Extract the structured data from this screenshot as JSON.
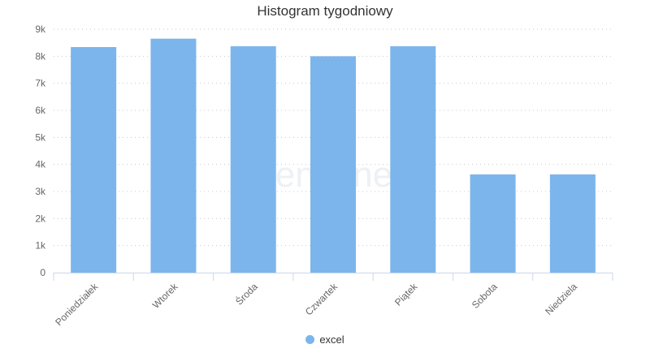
{
  "chart_data": {
    "type": "bar",
    "title": "Histogram tygodniowy",
    "categories": [
      "Poniedziałek",
      "Wtorek",
      "Środa",
      "Czwartek",
      "Piątek",
      "Sobota",
      "Niedziela"
    ],
    "series": [
      {
        "name": "excel",
        "values": [
          8340,
          8650,
          8370,
          8000,
          8370,
          3630,
          3630
        ],
        "color": "#7cb5ec"
      }
    ],
    "yticks": [
      "0",
      "1k",
      "2k",
      "3k",
      "4k",
      "5k",
      "6k",
      "7k",
      "8k",
      "9k"
    ],
    "ylim": [
      0,
      9000
    ],
    "grid": true,
    "gridline_style": "dotted",
    "legend_position": "bottom",
    "watermark": "sentione"
  }
}
